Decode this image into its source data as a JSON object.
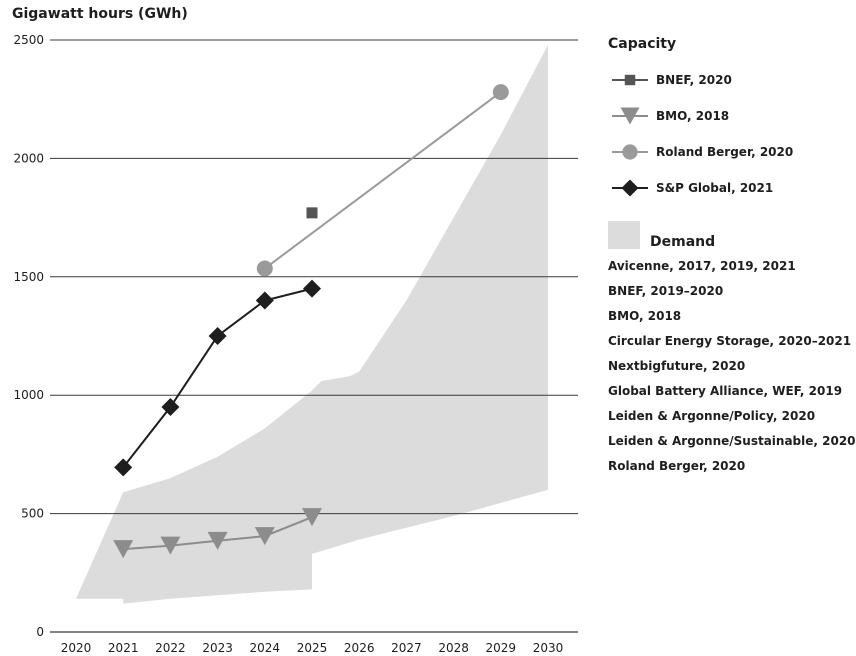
{
  "chart_data": {
    "type": "line",
    "ylabel": "Gigawatt hours (GWh)",
    "ylim": [
      0,
      2500
    ],
    "yticks": [
      0,
      500,
      1000,
      1500,
      2000,
      2500
    ],
    "xticks": [
      2020,
      2021,
      2022,
      2023,
      2024,
      2025,
      2026,
      2027,
      2028,
      2029,
      2030
    ],
    "grid": "horizontal",
    "legend_title": "Capacity",
    "series": [
      {
        "name": "BNEF, 2020",
        "marker": "square",
        "color": "#555555",
        "points": [
          {
            "x": 2025,
            "y": 1770
          }
        ]
      },
      {
        "name": "BMO, 2018",
        "marker": "triangle-down",
        "color": "#8c8c8c",
        "points": [
          {
            "x": 2021,
            "y": 350
          },
          {
            "x": 2022,
            "y": 365
          },
          {
            "x": 2023,
            "y": 385
          },
          {
            "x": 2024,
            "y": 405
          },
          {
            "x": 2025,
            "y": 485
          }
        ]
      },
      {
        "name": "Roland Berger, 2020",
        "marker": "circle",
        "color": "#9a9a9a",
        "points": [
          {
            "x": 2024,
            "y": 1535
          },
          {
            "x": 2029,
            "y": 2280
          }
        ]
      },
      {
        "name": "S&P Global, 2021",
        "marker": "diamond",
        "color": "#1e1e1e",
        "points": [
          {
            "x": 2021,
            "y": 695
          },
          {
            "x": 2022,
            "y": 950
          },
          {
            "x": 2023,
            "y": 1250
          },
          {
            "x": 2024,
            "y": 1400
          },
          {
            "x": 2025,
            "y": 1450
          }
        ]
      }
    ],
    "demand": {
      "label": "Demand",
      "color": "#dcdcdc",
      "upper": [
        {
          "x": 2020,
          "y": 140
        },
        {
          "x": 2021,
          "y": 590
        },
        {
          "x": 2022,
          "y": 650
        },
        {
          "x": 2023,
          "y": 740
        },
        {
          "x": 2024,
          "y": 860
        },
        {
          "x": 2025,
          "y": 1020
        },
        {
          "x": 2025.2,
          "y": 1060
        },
        {
          "x": 2025.8,
          "y": 1080
        },
        {
          "x": 2026,
          "y": 1100
        },
        {
          "x": 2027,
          "y": 1400
        },
        {
          "x": 2028,
          "y": 1750
        },
        {
          "x": 2029,
          "y": 2100
        },
        {
          "x": 2030,
          "y": 2480
        }
      ],
      "lower": [
        {
          "x": 2030,
          "y": 600
        },
        {
          "x": 2029,
          "y": 545
        },
        {
          "x": 2028,
          "y": 490
        },
        {
          "x": 2027,
          "y": 440
        },
        {
          "x": 2026,
          "y": 390
        },
        {
          "x": 2025,
          "y": 330
        },
        {
          "x": 2025,
          "y": 180
        },
        {
          "x": 2024,
          "y": 170
        },
        {
          "x": 2023,
          "y": 155
        },
        {
          "x": 2022,
          "y": 140
        },
        {
          "x": 2021,
          "y": 120
        },
        {
          "x": 2021,
          "y": 140
        },
        {
          "x": 2020,
          "y": 140
        }
      ],
      "sources": [
        "Avicenne, 2017, 2019, 2021",
        "BNEF, 2019–2020",
        "BMO, 2018",
        "Circular Energy Storage, 2020–2021",
        "Nextbigfuture, 2020",
        "Global Battery Alliance, WEF, 2019",
        "Leiden & Argonne/Policy, 2020",
        "Leiden & Argonne/Sustainable, 2020",
        "Roland Berger, 2020"
      ]
    }
  }
}
